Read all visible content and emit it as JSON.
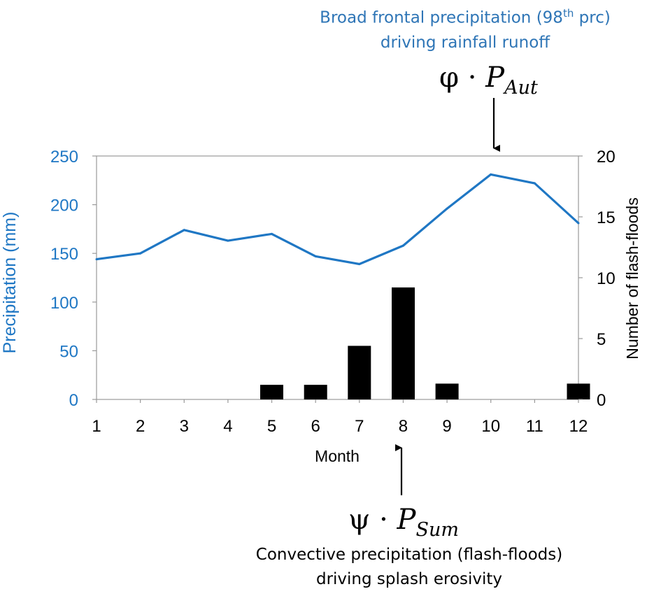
{
  "chart_data": {
    "type": "bar+line",
    "categories": [
      "1",
      "2",
      "3",
      "4",
      "5",
      "6",
      "7",
      "8",
      "9",
      "10",
      "11",
      "12"
    ],
    "series": [
      {
        "name": "Precipitation",
        "type": "line",
        "axis": "left",
        "color": "#1f77c4",
        "values": [
          144,
          150,
          174,
          163,
          170,
          147,
          139,
          158,
          196,
          231,
          222,
          181
        ]
      },
      {
        "name": "Number of flash-floods",
        "type": "bar",
        "axis": "right",
        "color": "#000000",
        "values": [
          0,
          0,
          0,
          0,
          1.2,
          1.2,
          4.4,
          9.2,
          1.3,
          0,
          0,
          1.3
        ]
      }
    ],
    "xlabel": "Month",
    "ylabel": "Precipitation (mm)",
    "y2label": "Number of flash-floods",
    "ylim": [
      0,
      250
    ],
    "y2lim": [
      0,
      20
    ],
    "yticks": [
      "0",
      "50",
      "100",
      "150",
      "200",
      "250"
    ],
    "y2ticks": [
      "0",
      "5",
      "10",
      "15",
      "20"
    ],
    "grid": false
  },
  "annotations": {
    "top_line1": "Broad frontal precipitation (98",
    "top_sup": "th",
    "top_line1_end": " prc)",
    "top_line2": "driving rainfall runoff",
    "top_formula_greek": "φ",
    "top_formula_dot": "·",
    "top_formula_var": "P",
    "top_formula_sub": "Aut",
    "bottom_formula_greek": "ψ",
    "bottom_formula_dot": "·",
    "bottom_formula_var": "P",
    "bottom_formula_sub": "Sum",
    "bottom_line1": "Convective precipitation (flash-floods)",
    "bottom_line2": "driving splash erosivity"
  }
}
